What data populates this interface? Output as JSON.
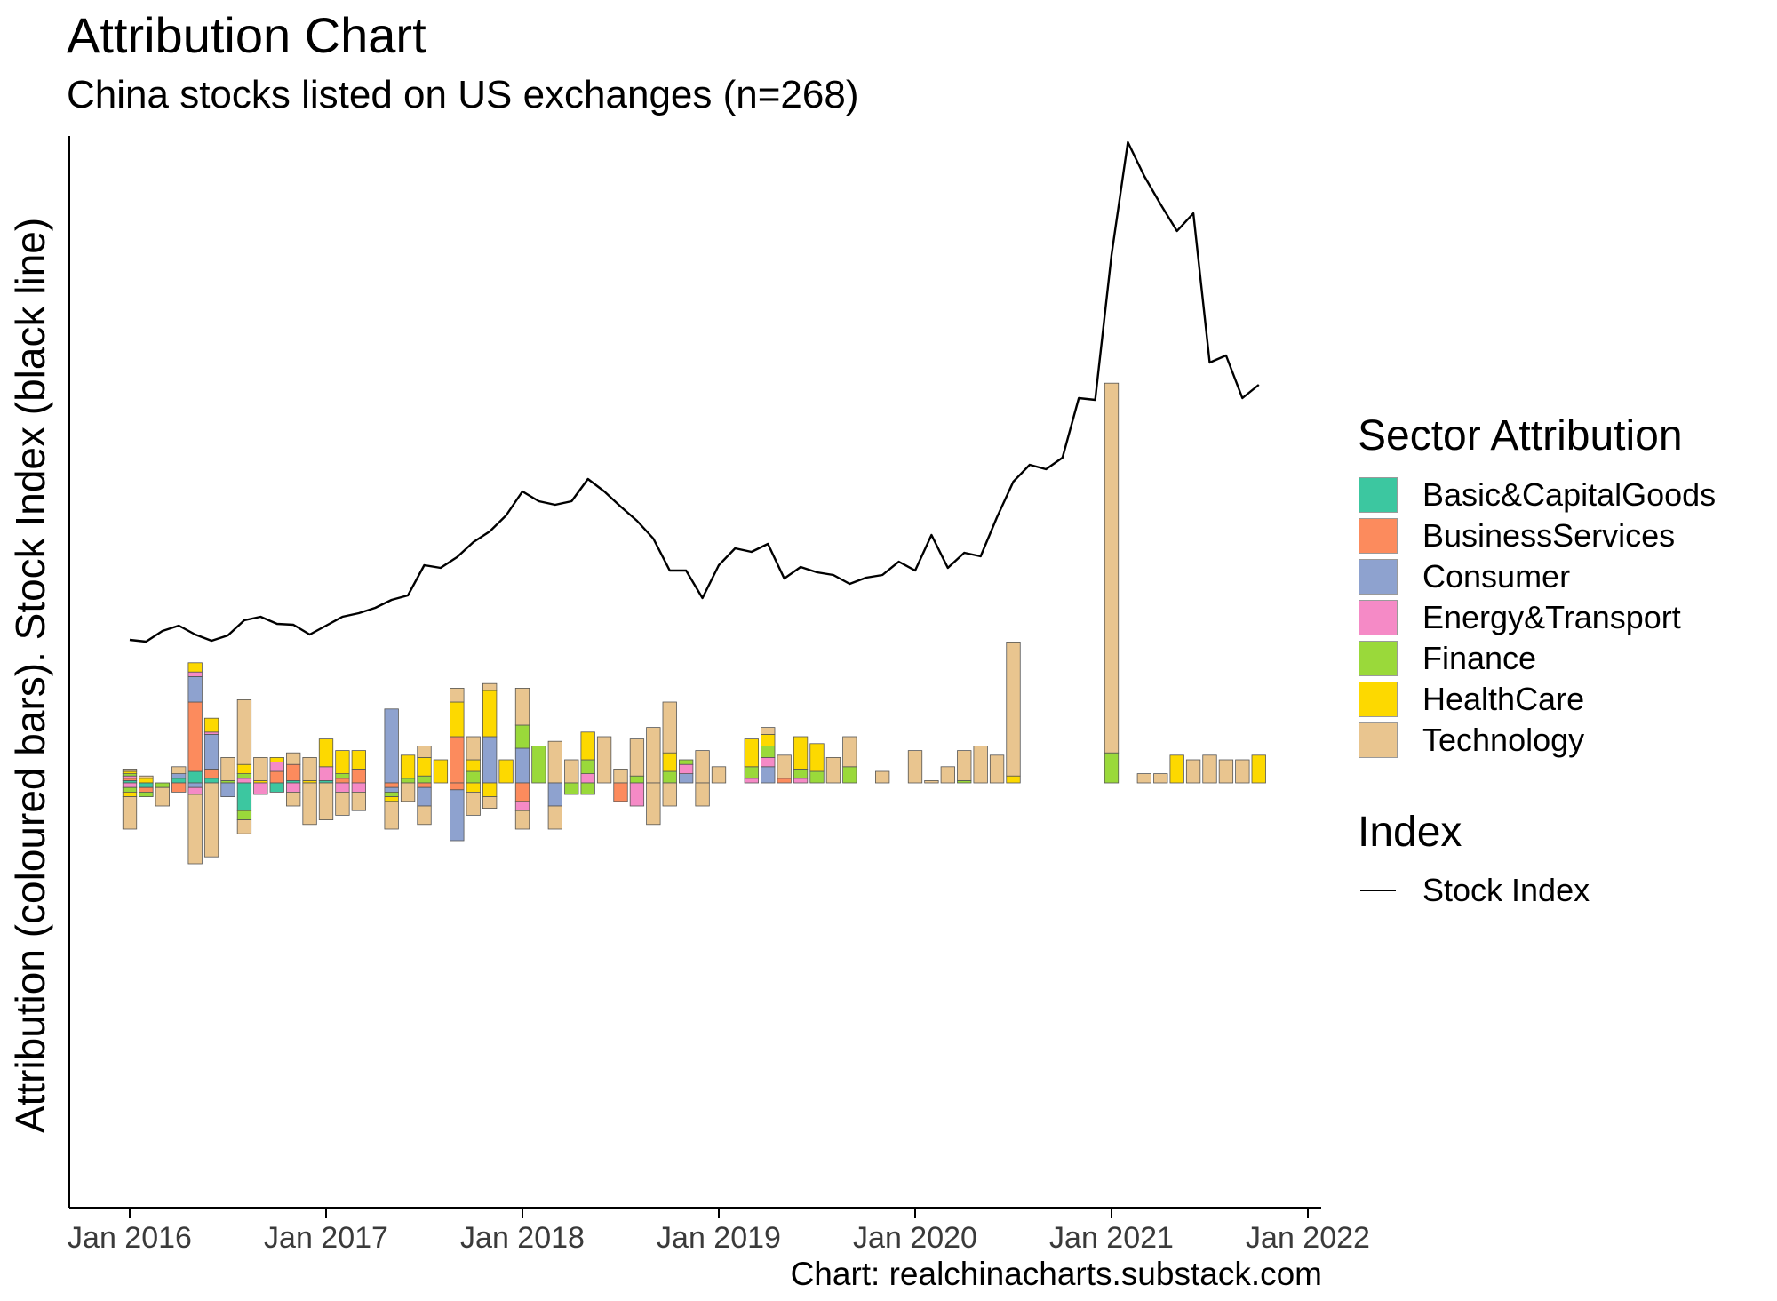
{
  "chart_data": {
    "type": "bar+line",
    "title": "Attribution Chart",
    "subtitle": "China stocks listed on US exchanges (n=268)",
    "ylabel": "Attribution (coloured bars). Stock Index (black line)",
    "xlabel": "",
    "caption": "Chart: realchinacharts.substack.com",
    "x_ticks": [
      "Jan 2016",
      "Jan 2017",
      "Jan 2018",
      "Jan 2019",
      "Jan 2020",
      "Jan 2021",
      "Jan 2022"
    ],
    "legend_position": "right",
    "legend_title": "Sector Attribution",
    "index_legend_title": "Index",
    "grid": false,
    "sectors": [
      {
        "name": "Basic&CapitalGoods",
        "color": "#3cc7a0"
      },
      {
        "name": "BusinessServices",
        "color": "#fc8b5d"
      },
      {
        "name": "Consumer",
        "color": "#8ea2cf"
      },
      {
        "name": "Energy&Transport",
        "color": "#f58ac6"
      },
      {
        "name": "Finance",
        "color": "#9ad93a"
      },
      {
        "name": "HealthCare",
        "color": "#fdd900"
      },
      {
        "name": "Technology",
        "color": "#e9c58f"
      }
    ],
    "months": [
      "2016-01",
      "2016-02",
      "2016-03",
      "2016-04",
      "2016-05",
      "2016-06",
      "2016-07",
      "2016-08",
      "2016-09",
      "2016-10",
      "2016-11",
      "2016-12",
      "2017-01",
      "2017-02",
      "2017-03",
      "2017-04",
      "2017-05",
      "2017-06",
      "2017-07",
      "2017-08",
      "2017-09",
      "2017-10",
      "2017-11",
      "2017-12",
      "2018-01",
      "2018-02",
      "2018-03",
      "2018-04",
      "2018-05",
      "2018-06",
      "2018-07",
      "2018-08",
      "2018-09",
      "2018-10",
      "2018-11",
      "2018-12",
      "2019-01",
      "2019-02",
      "2019-03",
      "2019-04",
      "2019-05",
      "2019-06",
      "2019-07",
      "2019-08",
      "2019-09",
      "2019-10",
      "2019-11",
      "2019-12",
      "2020-01",
      "2020-02",
      "2020-03",
      "2020-04",
      "2020-05",
      "2020-06",
      "2020-07",
      "2020-08",
      "2020-09",
      "2020-10",
      "2020-11",
      "2020-12",
      "2021-01",
      "2021-02",
      "2021-03",
      "2021-04",
      "2021-05",
      "2021-06",
      "2021-07",
      "2021-08",
      "2021-09",
      "2021-10"
    ],
    "positive": [
      [
        1,
        1,
        0,
        1,
        1,
        1,
        1
      ],
      [
        0,
        0,
        0,
        0,
        0,
        2,
        1
      ],
      [
        0,
        0,
        0,
        0,
        0,
        0,
        0
      ],
      [
        2,
        0,
        2,
        0,
        0,
        0,
        3
      ],
      [
        5,
        30,
        11,
        2,
        0,
        4,
        0
      ],
      [
        2,
        4,
        15,
        1,
        0,
        6,
        0
      ],
      [
        0,
        0,
        0,
        0,
        1,
        0,
        10
      ],
      [
        0,
        0,
        0,
        2,
        2,
        4,
        28
      ],
      [
        0,
        0,
        0,
        0,
        0,
        1,
        10
      ],
      [
        0,
        5,
        0,
        4,
        0,
        2,
        0
      ],
      [
        1,
        7,
        0,
        0,
        0,
        0,
        5
      ],
      [
        0,
        0,
        0,
        0,
        0,
        1,
        10
      ],
      [
        1,
        0,
        0,
        6,
        0,
        12,
        0
      ],
      [
        0,
        2,
        0,
        0,
        2,
        10,
        0
      ],
      [
        0,
        6,
        0,
        0,
        0,
        8,
        0
      ],
      [
        0,
        0,
        0,
        0,
        0,
        0,
        0
      ],
      [
        0,
        0,
        32,
        0,
        0,
        0,
        0
      ],
      [
        0,
        0,
        0,
        0,
        2,
        10,
        0
      ],
      [
        0,
        0,
        0,
        0,
        3,
        8,
        5
      ],
      [
        0,
        0,
        0,
        0,
        0,
        10,
        0
      ],
      [
        0,
        20,
        0,
        0,
        0,
        15,
        6
      ],
      [
        0,
        0,
        0,
        0,
        5,
        5,
        10
      ],
      [
        0,
        0,
        20,
        0,
        0,
        20,
        3
      ],
      [
        0,
        0,
        0,
        0,
        0,
        10,
        0
      ],
      [
        0,
        0,
        15,
        0,
        10,
        0,
        16
      ],
      [
        0,
        0,
        0,
        0,
        16,
        0,
        0
      ],
      [
        0,
        0,
        0,
        0,
        0,
        0,
        18
      ],
      [
        0,
        0,
        0,
        0,
        0,
        0,
        10
      ],
      [
        0,
        0,
        0,
        4,
        6,
        12,
        0
      ],
      [
        0,
        0,
        0,
        0,
        0,
        0,
        20
      ],
      [
        0,
        0,
        0,
        0,
        0,
        0,
        6
      ],
      [
        0,
        0,
        0,
        0,
        3,
        0,
        16
      ],
      [
        0,
        0,
        0,
        0,
        0,
        0,
        24
      ],
      [
        0,
        0,
        0,
        0,
        5,
        8,
        22
      ],
      [
        0,
        0,
        4,
        4,
        2,
        0,
        0
      ],
      [
        0,
        0,
        0,
        0,
        0,
        0,
        14
      ],
      [
        0,
        0,
        0,
        0,
        0,
        0,
        7
      ],
      [
        0,
        0,
        0,
        0,
        0,
        0,
        0
      ],
      [
        0,
        0,
        0,
        2,
        5,
        12,
        0
      ],
      [
        0,
        0,
        7,
        4,
        5,
        5,
        3
      ],
      [
        0,
        2,
        0,
        0,
        0,
        0,
        10
      ],
      [
        0,
        0,
        0,
        2,
        4,
        14,
        0
      ],
      [
        0,
        0,
        0,
        0,
        5,
        12,
        0
      ],
      [
        0,
        0,
        0,
        0,
        0,
        0,
        11
      ],
      [
        0,
        0,
        0,
        0,
        7,
        0,
        13
      ],
      [
        0,
        0,
        0,
        0,
        0,
        0,
        0
      ],
      [
        0,
        0,
        0,
        0,
        0,
        0,
        5
      ],
      [
        0,
        0,
        0,
        0,
        0,
        0,
        0
      ],
      [
        0,
        0,
        0,
        0,
        0,
        0,
        14
      ],
      [
        0,
        0,
        0,
        0,
        0,
        0,
        1
      ],
      [
        0,
        0,
        0,
        0,
        0,
        0,
        7
      ],
      [
        0,
        0,
        0,
        0,
        1,
        0,
        13
      ],
      [
        0,
        0,
        0,
        0,
        0,
        0,
        16
      ],
      [
        0,
        0,
        0,
        0,
        0,
        0,
        12
      ],
      [
        0,
        0,
        0,
        0,
        0,
        3,
        58
      ],
      [
        0,
        0,
        0,
        0,
        0,
        0,
        0
      ],
      [
        0,
        0,
        0,
        0,
        0,
        0,
        0
      ],
      [
        0,
        0,
        0,
        0,
        0,
        0,
        0
      ],
      [
        0,
        0,
        0,
        0,
        0,
        0,
        0
      ],
      [
        0,
        0,
        0,
        0,
        0,
        0,
        0
      ],
      [
        0,
        0,
        0,
        0,
        13,
        0,
        160
      ],
      [
        0,
        0,
        0,
        0,
        0,
        0,
        0
      ],
      [
        0,
        0,
        0,
        0,
        0,
        0,
        4
      ],
      [
        0,
        0,
        0,
        0,
        0,
        0,
        4
      ],
      [
        0,
        0,
        0,
        0,
        0,
        12,
        0
      ],
      [
        0,
        0,
        0,
        0,
        0,
        0,
        10
      ],
      [
        0,
        0,
        0,
        0,
        0,
        0,
        12
      ],
      [
        0,
        0,
        0,
        0,
        0,
        0,
        10
      ],
      [
        0,
        0,
        0,
        0,
        0,
        0,
        10
      ],
      [
        0,
        0,
        0,
        0,
        0,
        12,
        0
      ]
    ],
    "negative": [
      [
        0,
        0,
        0,
        2,
        2,
        2,
        14
      ],
      [
        2,
        2,
        0,
        0,
        2,
        0,
        0
      ],
      [
        0,
        0,
        0,
        0,
        2,
        0,
        8
      ],
      [
        0,
        4,
        0,
        0,
        0,
        0,
        0
      ],
      [
        0,
        0,
        2,
        3,
        0,
        0,
        30
      ],
      [
        0,
        0,
        0,
        0,
        0,
        0,
        32
      ],
      [
        0,
        0,
        6,
        0,
        0,
        0,
        0
      ],
      [
        12,
        0,
        0,
        0,
        4,
        0,
        6
      ],
      [
        0,
        0,
        0,
        5,
        0,
        0,
        0
      ],
      [
        4,
        0,
        0,
        0,
        0,
        0,
        0
      ],
      [
        0,
        0,
        0,
        4,
        0,
        0,
        6
      ],
      [
        0,
        0,
        0,
        0,
        0,
        0,
        18
      ],
      [
        0,
        0,
        0,
        0,
        0,
        0,
        16
      ],
      [
        0,
        0,
        0,
        4,
        0,
        0,
        10
      ],
      [
        0,
        0,
        0,
        4,
        0,
        0,
        8
      ],
      [
        0,
        0,
        0,
        0,
        0,
        0,
        0
      ],
      [
        0,
        2,
        2,
        0,
        2,
        2,
        12
      ],
      [
        0,
        0,
        0,
        0,
        0,
        0,
        8
      ],
      [
        0,
        2,
        8,
        0,
        0,
        0,
        8
      ],
      [
        0,
        0,
        0,
        0,
        0,
        0,
        0
      ],
      [
        0,
        3,
        22,
        0,
        0,
        0,
        0
      ],
      [
        0,
        0,
        0,
        0,
        0,
        4,
        10
      ],
      [
        0,
        0,
        0,
        0,
        0,
        6,
        5
      ],
      [
        0,
        0,
        0,
        0,
        0,
        0,
        0
      ],
      [
        0,
        8,
        0,
        4,
        0,
        0,
        8
      ],
      [
        0,
        0,
        0,
        0,
        0,
        0,
        0
      ],
      [
        0,
        0,
        10,
        0,
        0,
        0,
        10
      ],
      [
        0,
        0,
        0,
        0,
        5,
        0,
        0
      ],
      [
        0,
        0,
        0,
        0,
        5,
        0,
        0
      ],
      [
        0,
        0,
        0,
        0,
        0,
        0,
        0
      ],
      [
        0,
        8,
        0,
        0,
        0,
        0,
        0
      ],
      [
        0,
        0,
        0,
        10,
        0,
        0,
        0
      ],
      [
        0,
        0,
        0,
        0,
        0,
        0,
        18
      ],
      [
        0,
        0,
        0,
        0,
        0,
        0,
        10
      ],
      [
        0,
        0,
        0,
        0,
        0,
        0,
        0
      ],
      [
        0,
        0,
        0,
        0,
        0,
        0,
        10
      ],
      [
        0,
        0,
        0,
        0,
        0,
        0,
        0
      ],
      [
        0,
        0,
        0,
        0,
        0,
        0,
        0
      ],
      [
        0,
        0,
        0,
        0,
        0,
        0,
        0
      ],
      [
        0,
        0,
        0,
        0,
        0,
        0,
        0
      ],
      [
        0,
        0,
        0,
        0,
        0,
        0,
        0
      ],
      [
        0,
        0,
        0,
        0,
        0,
        0,
        0
      ],
      [
        0,
        0,
        0,
        0,
        0,
        0,
        0
      ],
      [
        0,
        0,
        0,
        0,
        0,
        0,
        0
      ],
      [
        0,
        0,
        0,
        0,
        0,
        0,
        0
      ],
      [
        0,
        0,
        0,
        0,
        0,
        0,
        0
      ],
      [
        0,
        0,
        0,
        0,
        0,
        0,
        0
      ],
      [
        0,
        0,
        0,
        0,
        0,
        0,
        0
      ],
      [
        0,
        0,
        0,
        0,
        0,
        0,
        0
      ],
      [
        0,
        0,
        0,
        0,
        0,
        0,
        0
      ],
      [
        0,
        0,
        0,
        0,
        0,
        0,
        0
      ],
      [
        0,
        0,
        0,
        0,
        0,
        0,
        0
      ],
      [
        0,
        0,
        0,
        0,
        0,
        0,
        0
      ],
      [
        0,
        0,
        0,
        0,
        0,
        0,
        0
      ],
      [
        0,
        0,
        0,
        0,
        0,
        0,
        0
      ],
      [
        0,
        0,
        0,
        0,
        0,
        0,
        0
      ],
      [
        0,
        0,
        0,
        0,
        0,
        0,
        0
      ],
      [
        0,
        0,
        0,
        0,
        0,
        0,
        0
      ],
      [
        0,
        0,
        0,
        0,
        0,
        0,
        0
      ],
      [
        0,
        0,
        0,
        0,
        0,
        0,
        0
      ],
      [
        0,
        0,
        0,
        0,
        0,
        0,
        0
      ],
      [
        0,
        0,
        0,
        0,
        0,
        0,
        0
      ],
      [
        0,
        0,
        0,
        0,
        0,
        0,
        0
      ],
      [
        0,
        0,
        0,
        0,
        0,
        0,
        0
      ],
      [
        0,
        0,
        0,
        0,
        0,
        0,
        0
      ],
      [
        0,
        0,
        0,
        0,
        0,
        0,
        0
      ],
      [
        0,
        0,
        0,
        0,
        0,
        0,
        0
      ],
      [
        0,
        0,
        0,
        0,
        0,
        0,
        0
      ],
      [
        0,
        0,
        0,
        0,
        0,
        0,
        0
      ],
      [
        0,
        0,
        0,
        0,
        0,
        0,
        0
      ]
    ],
    "index_line": {
      "name": "Stock Index",
      "values": [
        160,
        158,
        170,
        176,
        166,
        159,
        165,
        182,
        186,
        178,
        177,
        166,
        176,
        186,
        190,
        196,
        205,
        210,
        244,
        241,
        253,
        270,
        282,
        300,
        327,
        316,
        312,
        316,
        341,
        327,
        310,
        294,
        274,
        238,
        238,
        207,
        244,
        263,
        259,
        268,
        229,
        242,
        236,
        233,
        223,
        230,
        233,
        248,
        238,
        278,
        241,
        258,
        254,
        298,
        338,
        357,
        352,
        365,
        432,
        430,
        593,
        720,
        682,
        650,
        620,
        640,
        472,
        480,
        432,
        447
      ]
    }
  }
}
